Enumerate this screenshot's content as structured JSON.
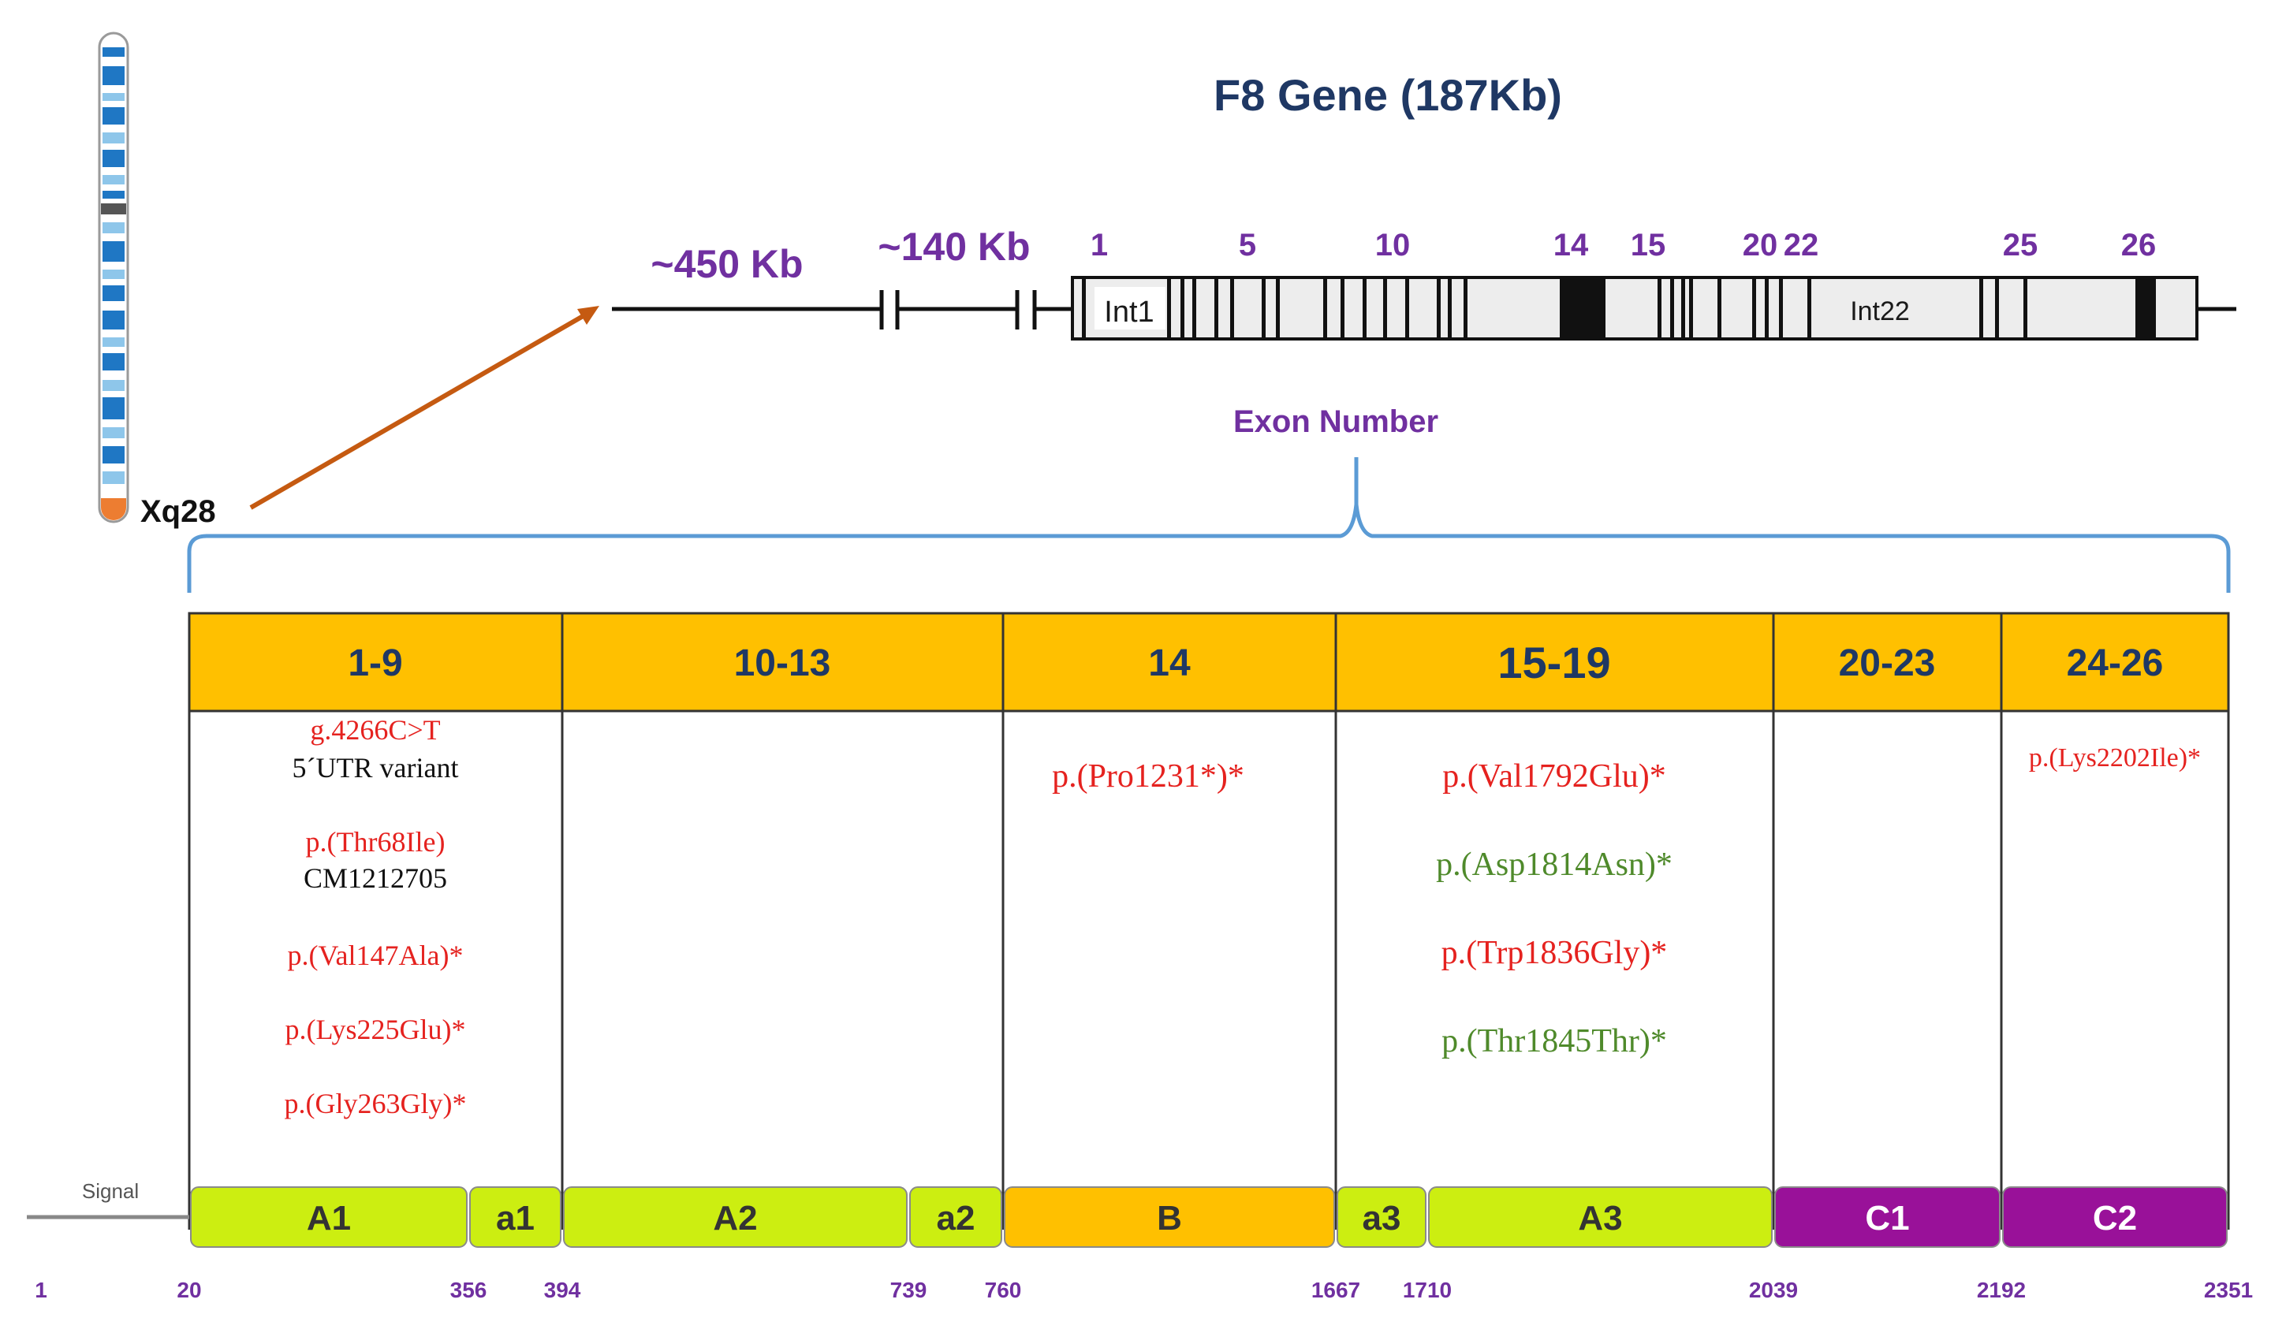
{
  "title": "F8 Gene (187Kb)",
  "chromosome_band": "Xq28",
  "distance_labels": [
    "~450 Kb",
    "~140 Kb"
  ],
  "exon_numbers": [
    "1",
    "5",
    "10",
    "14",
    "15",
    "20",
    "22",
    "25",
    "26"
  ],
  "intron_labels": [
    "Int1",
    "Int22"
  ],
  "exon_number_caption": "Exon Number",
  "regions": [
    {
      "label": "1-9"
    },
    {
      "label": "10-13"
    },
    {
      "label": "14"
    },
    {
      "label": "15-19"
    },
    {
      "label": "20-23"
    },
    {
      "label": "24-26"
    }
  ],
  "variants": {
    "r1": [
      {
        "text": "g.4266C>T",
        "color": "red"
      },
      {
        "text": "5´UTR variant",
        "color": "black"
      },
      {
        "text": "p.(Thr68Ile)",
        "color": "red"
      },
      {
        "text": "CM1212705",
        "color": "black"
      },
      {
        "text": "p.(Val147Ala)*",
        "color": "red"
      },
      {
        "text": "p.(Lys225Glu)*",
        "color": "red"
      },
      {
        "text": "p.(Gly263Gly)*",
        "color": "red"
      }
    ],
    "r3": [
      {
        "text": "p.(Pro1231*)*",
        "color": "red"
      }
    ],
    "r4": [
      {
        "text": "p.(Val1792Glu)*",
        "color": "red"
      },
      {
        "text": "p.(Asp1814Asn)*",
        "color": "green"
      },
      {
        "text": "p.(Trp1836Gly)*",
        "color": "red"
      },
      {
        "text": "p.(Thr1845Thr)*",
        "color": "green"
      }
    ],
    "r6": [
      {
        "text": "p.(Lys2202Ile)*",
        "color": "red"
      }
    ]
  },
  "signal_label": "Signal",
  "domains": [
    {
      "label": "A1",
      "start": 20,
      "end": 356,
      "color": "#ccee11"
    },
    {
      "label": "a1",
      "start": 356,
      "end": 394,
      "color": "#ccee11"
    },
    {
      "label": "A2",
      "start": 394,
      "end": 739,
      "color": "#ccee11"
    },
    {
      "label": "a2",
      "start": 739,
      "end": 760,
      "color": "#ccee11"
    },
    {
      "label": "B",
      "start": 760,
      "end": 1667,
      "color": "#ffc000"
    },
    {
      "label": "a3",
      "start": 1667,
      "end": 1710,
      "color": "#ccee11"
    },
    {
      "label": "A3",
      "start": 1710,
      "end": 2039,
      "color": "#ccee11"
    },
    {
      "label": "C1",
      "start": 2039,
      "end": 2192,
      "color": "#991199"
    },
    {
      "label": "C2",
      "start": 2192,
      "end": 2351,
      "color": "#991199"
    }
  ],
  "aa_positions": [
    "1",
    "20",
    "356",
    "394",
    "739",
    "760",
    "1667",
    "1710",
    "2039",
    "2192",
    "2351"
  ],
  "colors": {
    "region_header": "#ffc000",
    "bracket": "#5b9bd5",
    "arrow": "#c55a11",
    "label_purple": "#7030a0",
    "title_blue": "#1f3864"
  }
}
